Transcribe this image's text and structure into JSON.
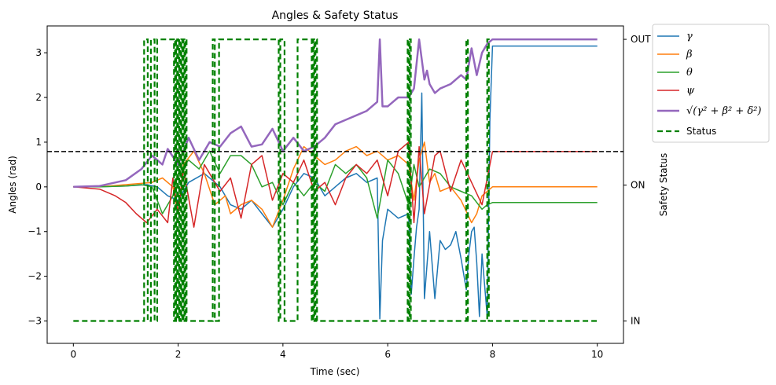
{
  "chart_data": {
    "type": "line",
    "title": "Angles & Safety Status",
    "xlabel": "Time (sec)",
    "ylabel": "Angles (rad)",
    "y2label": "Safety Status",
    "xlim": [
      -0.5,
      10.5
    ],
    "ylim": [
      -3.5,
      3.6
    ],
    "xticks": [
      0,
      2,
      4,
      6,
      8,
      10
    ],
    "yticks": [
      -3,
      -2,
      -1,
      0,
      1,
      2,
      3
    ],
    "y2ticks": [
      {
        "value": -3.0,
        "label": "IN"
      },
      {
        "value": 0.04,
        "label": "ON"
      },
      {
        "value": 3.3,
        "label": "OUT"
      }
    ],
    "threshold": 0.79,
    "grid": false,
    "legend_position": "outside-top-right",
    "series": [
      {
        "key": "gamma",
        "name": "γ",
        "color": "#1f77b4",
        "width": 1.5,
        "dash": "",
        "x": [
          0,
          0.5,
          1.0,
          1.4,
          1.6,
          1.8,
          2.0,
          2.2,
          2.5,
          2.8,
          3.0,
          3.2,
          3.4,
          3.6,
          3.8,
          4.0,
          4.2,
          4.4,
          4.6,
          4.8,
          5.0,
          5.2,
          5.4,
          5.6,
          5.8,
          5.85,
          5.9,
          6.0,
          6.2,
          6.4,
          6.45,
          6.5,
          6.55,
          6.6,
          6.65,
          6.7,
          6.8,
          6.9,
          7.0,
          7.1,
          7.2,
          7.3,
          7.4,
          7.5,
          7.55,
          7.6,
          7.65,
          7.7,
          7.75,
          7.8,
          7.9,
          7.95,
          8.0,
          10.0
        ],
        "y": [
          0,
          0,
          0.02,
          0.05,
          0.0,
          -0.2,
          -0.3,
          0.1,
          0.3,
          0.0,
          -0.4,
          -0.5,
          -0.3,
          -0.6,
          -0.9,
          -0.5,
          0.0,
          0.3,
          0.2,
          -0.2,
          0.0,
          0.2,
          0.3,
          0.1,
          0.2,
          -2.95,
          -1.2,
          -0.5,
          -0.7,
          -0.6,
          -2.4,
          -1.6,
          -0.9,
          -0.5,
          2.1,
          -2.5,
          -1.0,
          -2.5,
          -1.2,
          -1.4,
          -1.3,
          -1.0,
          -1.6,
          -2.3,
          -1.5,
          -1.0,
          -0.9,
          -1.7,
          -2.9,
          -1.5,
          -2.9,
          1.5,
          3.15,
          3.15
        ]
      },
      {
        "key": "beta",
        "name": "β",
        "color": "#ff7f0e",
        "width": 1.5,
        "dash": "",
        "x": [
          0,
          0.5,
          1.0,
          1.5,
          1.7,
          1.9,
          2.0,
          2.1,
          2.3,
          2.5,
          2.7,
          2.9,
          3.0,
          3.2,
          3.4,
          3.6,
          3.8,
          4.0,
          4.2,
          4.4,
          4.6,
          4.8,
          5.0,
          5.2,
          5.4,
          5.6,
          5.8,
          6.0,
          6.2,
          6.4,
          6.5,
          6.6,
          6.7,
          6.8,
          6.9,
          7.0,
          7.2,
          7.4,
          7.6,
          7.7,
          7.8,
          8.0,
          10.0
        ],
        "y": [
          0,
          0,
          0.05,
          0.1,
          0.2,
          0.0,
          -0.6,
          0.5,
          0.8,
          0.3,
          -0.4,
          -0.2,
          -0.6,
          -0.4,
          -0.3,
          -0.5,
          -0.9,
          -0.3,
          0.4,
          0.9,
          0.7,
          0.5,
          0.6,
          0.8,
          0.9,
          0.7,
          0.8,
          0.6,
          0.7,
          0.5,
          -0.3,
          0.6,
          1.0,
          0.1,
          0.3,
          -0.1,
          0.0,
          -0.3,
          -0.8,
          -0.6,
          -0.2,
          0.0,
          0.0
        ]
      },
      {
        "key": "theta",
        "name": "θ",
        "color": "#2ca02c",
        "width": 1.5,
        "dash": "",
        "x": [
          0,
          0.5,
          1.0,
          1.3,
          1.5,
          1.7,
          1.9,
          2.0,
          2.2,
          2.4,
          2.6,
          2.8,
          3.0,
          3.2,
          3.4,
          3.6,
          3.8,
          4.0,
          4.2,
          4.4,
          4.6,
          4.8,
          5.0,
          5.2,
          5.4,
          5.6,
          5.8,
          6.0,
          6.2,
          6.4,
          6.5,
          6.6,
          6.8,
          7.0,
          7.2,
          7.4,
          7.6,
          7.8,
          7.9,
          8.0,
          10.0
        ],
        "y": [
          0,
          0,
          0.02,
          0.05,
          0.0,
          -0.6,
          -0.2,
          0.3,
          0.6,
          0.4,
          0.8,
          0.3,
          0.7,
          0.7,
          0.5,
          0.0,
          0.1,
          -0.4,
          0.1,
          -0.2,
          0.1,
          -0.1,
          0.5,
          0.3,
          0.5,
          0.2,
          -0.7,
          0.6,
          0.3,
          -0.4,
          0.5,
          0.0,
          0.4,
          0.3,
          0.0,
          -0.1,
          -0.2,
          -0.5,
          -0.4,
          -0.35,
          -0.35
        ]
      },
      {
        "key": "psi",
        "name": "ψ",
        "color": "#d62728",
        "width": 1.5,
        "dash": "",
        "x": [
          0,
          0.5,
          0.8,
          1.0,
          1.2,
          1.4,
          1.6,
          1.8,
          1.9,
          2.0,
          2.1,
          2.3,
          2.5,
          2.8,
          3.0,
          3.2,
          3.4,
          3.6,
          3.8,
          4.0,
          4.2,
          4.4,
          4.6,
          4.8,
          5.0,
          5.2,
          5.4,
          5.6,
          5.8,
          6.0,
          6.2,
          6.4,
          6.5,
          6.6,
          6.7,
          6.9,
          7.0,
          7.2,
          7.4,
          7.6,
          7.8,
          8.0,
          10.0
        ],
        "y": [
          0,
          -0.05,
          -0.2,
          -0.35,
          -0.6,
          -0.8,
          -0.5,
          -0.8,
          0.2,
          -0.6,
          0.4,
          -0.9,
          0.5,
          -0.1,
          0.2,
          -0.7,
          0.5,
          0.7,
          -0.3,
          0.3,
          0.1,
          0.6,
          -0.1,
          0.1,
          -0.4,
          0.2,
          0.5,
          0.3,
          0.6,
          -0.2,
          0.8,
          1.0,
          -0.8,
          0.9,
          -0.6,
          0.7,
          0.8,
          -0.1,
          0.6,
          0.1,
          -0.4,
          0.79,
          0.79
        ]
      },
      {
        "key": "norm",
        "name": "√(γ² + β² + δ²)",
        "color": "#9467bd",
        "width": 2.5,
        "dash": "",
        "x": [
          0,
          0.5,
          1.0,
          1.3,
          1.5,
          1.7,
          1.8,
          2.0,
          2.2,
          2.4,
          2.6,
          2.8,
          3.0,
          3.2,
          3.4,
          3.6,
          3.8,
          4.0,
          4.2,
          4.4,
          4.6,
          4.8,
          5.0,
          5.2,
          5.4,
          5.6,
          5.8,
          5.85,
          5.9,
          6.0,
          6.2,
          6.4,
          6.5,
          6.6,
          6.7,
          6.75,
          6.8,
          6.9,
          7.0,
          7.2,
          7.4,
          7.5,
          7.6,
          7.65,
          7.7,
          7.8,
          7.9,
          8.0,
          10.0
        ],
        "y": [
          0.0,
          0.02,
          0.15,
          0.4,
          0.7,
          0.5,
          0.85,
          0.5,
          1.1,
          0.6,
          1.0,
          0.9,
          1.2,
          1.35,
          0.9,
          0.95,
          1.3,
          0.8,
          1.1,
          0.8,
          0.9,
          1.1,
          1.4,
          1.5,
          1.6,
          1.7,
          1.9,
          3.3,
          1.8,
          1.8,
          2.0,
          2.0,
          2.2,
          3.3,
          2.4,
          2.6,
          2.3,
          2.1,
          2.2,
          2.3,
          2.5,
          2.4,
          3.1,
          2.8,
          2.5,
          3.0,
          3.2,
          3.3,
          3.3
        ]
      }
    ],
    "status": {
      "name": "Status",
      "color": "#008000",
      "on_level": 3.3,
      "off_level": -3.0,
      "transitions": [
        0,
        1.35,
        1.42,
        1.48,
        1.55,
        1.6,
        1.92,
        1.94,
        1.96,
        1.98,
        2.0,
        2.02,
        2.04,
        2.06,
        2.08,
        2.1,
        2.12,
        2.14,
        2.16,
        2.66,
        2.7,
        2.78,
        3.92,
        3.95,
        4.03,
        4.28,
        4.55,
        4.58,
        4.6,
        4.62,
        4.65,
        6.38,
        6.4,
        6.42,
        6.44,
        7.5,
        7.53,
        7.9,
        7.93,
        10.0
      ]
    }
  },
  "legend": [
    {
      "key": "gamma",
      "label": "γ"
    },
    {
      "key": "beta",
      "label": "β"
    },
    {
      "key": "theta",
      "label": "θ"
    },
    {
      "key": "psi",
      "label": "ψ"
    },
    {
      "key": "norm",
      "label": "√(γ² + β² + δ²)"
    },
    {
      "key": "status",
      "label": "Status"
    }
  ]
}
